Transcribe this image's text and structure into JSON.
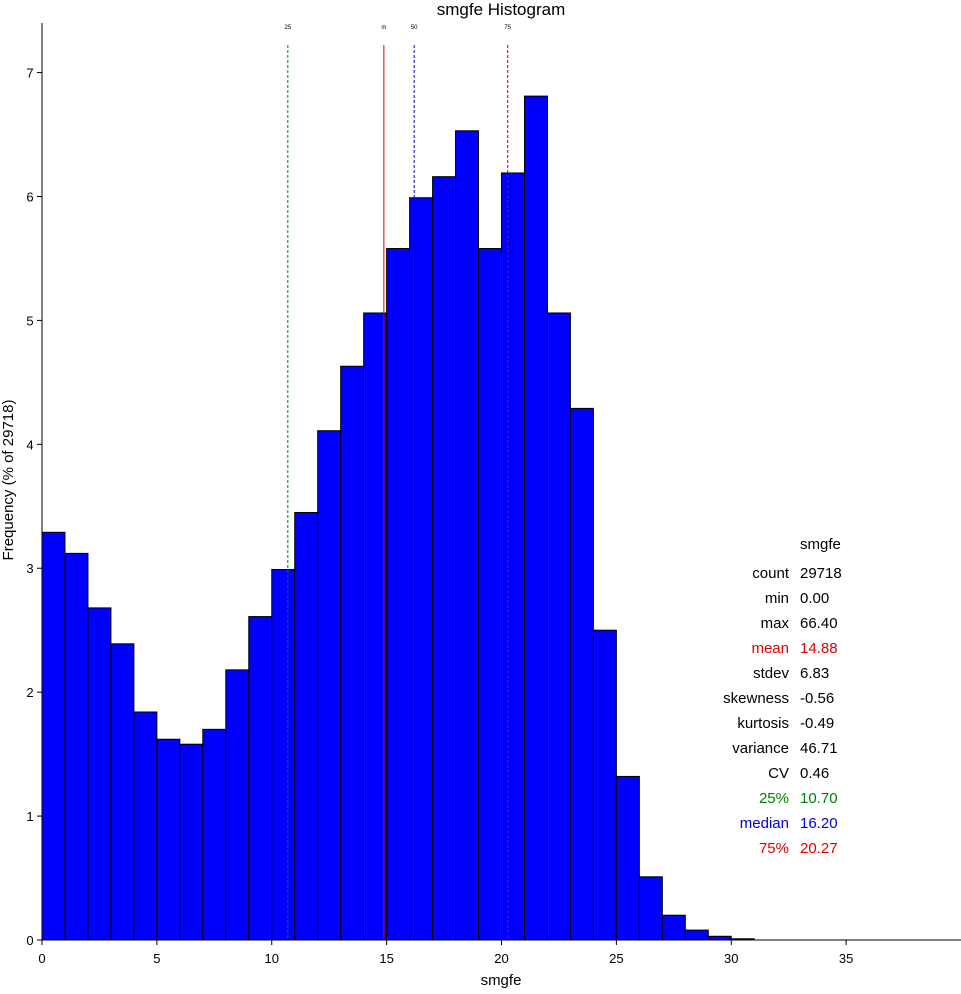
{
  "chart_data": {
    "type": "bar",
    "title": "smgfe Histogram",
    "xlabel": "smgfe",
    "ylabel": "Frequency (% of 29718)",
    "xlim": [
      0,
      40
    ],
    "ylim": [
      0,
      7.4
    ],
    "x_ticks": [
      0,
      5,
      10,
      15,
      20,
      25,
      30,
      35
    ],
    "y_ticks": [
      0,
      1,
      2,
      3,
      4,
      5,
      6,
      7
    ],
    "bin_width": 1,
    "bins": [
      {
        "x0": 0,
        "value": 3.29
      },
      {
        "x0": 1,
        "value": 3.12
      },
      {
        "x0": 2,
        "value": 2.68
      },
      {
        "x0": 3,
        "value": 2.39
      },
      {
        "x0": 4,
        "value": 1.84
      },
      {
        "x0": 5,
        "value": 1.62
      },
      {
        "x0": 6,
        "value": 1.58
      },
      {
        "x0": 7,
        "value": 1.7
      },
      {
        "x0": 8,
        "value": 2.18
      },
      {
        "x0": 9,
        "value": 2.61
      },
      {
        "x0": 10,
        "value": 2.99
      },
      {
        "x0": 11,
        "value": 3.45
      },
      {
        "x0": 12,
        "value": 4.11
      },
      {
        "x0": 13,
        "value": 4.63
      },
      {
        "x0": 14,
        "value": 5.06
      },
      {
        "x0": 15,
        "value": 5.58
      },
      {
        "x0": 16,
        "value": 5.99
      },
      {
        "x0": 17,
        "value": 6.16
      },
      {
        "x0": 18,
        "value": 6.53
      },
      {
        "x0": 19,
        "value": 5.58
      },
      {
        "x0": 20,
        "value": 6.19
      },
      {
        "x0": 21,
        "value": 6.81
      },
      {
        "x0": 22,
        "value": 5.06
      },
      {
        "x0": 23,
        "value": 4.29
      },
      {
        "x0": 24,
        "value": 2.5
      },
      {
        "x0": 25,
        "value": 1.32
      },
      {
        "x0": 26,
        "value": 0.51
      },
      {
        "x0": 27,
        "value": 0.2
      },
      {
        "x0": 28,
        "value": 0.08
      },
      {
        "x0": 29,
        "value": 0.03
      },
      {
        "x0": 30,
        "value": 0.01
      }
    ],
    "bar_color": "#0000ff",
    "bar_edge_color": "#000000",
    "reference_lines": [
      {
        "name": "q25",
        "label": "25",
        "x": 10.7,
        "color": "#008000",
        "style": "dashed"
      },
      {
        "name": "mean",
        "label": "m",
        "x": 14.88,
        "color": "#e00000",
        "style": "solid"
      },
      {
        "name": "median",
        "label": "50",
        "x": 16.2,
        "color": "#0000dd",
        "style": "dashed"
      },
      {
        "name": "q75",
        "label": "75",
        "x": 20.27,
        "color": "#c00000",
        "style": "dashed"
      }
    ],
    "stats": {
      "header": "smgfe",
      "rows": [
        {
          "name": "count",
          "label": "count",
          "value": "29718",
          "color": "#000000"
        },
        {
          "name": "min",
          "label": "min",
          "value": "0.00",
          "color": "#000000"
        },
        {
          "name": "max",
          "label": "max",
          "value": "66.40",
          "color": "#000000"
        },
        {
          "name": "mean",
          "label": "mean",
          "value": "14.88",
          "color": "#e00000"
        },
        {
          "name": "stdev",
          "label": "stdev",
          "value": "6.83",
          "color": "#000000"
        },
        {
          "name": "skewness",
          "label": "skewness",
          "value": "-0.56",
          "color": "#000000"
        },
        {
          "name": "kurtosis",
          "label": "kurtosis",
          "value": "-0.49",
          "color": "#000000"
        },
        {
          "name": "variance",
          "label": "variance",
          "value": "46.71",
          "color": "#000000"
        },
        {
          "name": "cv",
          "label": "CV",
          "value": "0.46",
          "color": "#000000"
        },
        {
          "name": "q25",
          "label": "25%",
          "value": "10.70",
          "color": "#008000"
        },
        {
          "name": "median",
          "label": "median",
          "value": "16.20",
          "color": "#0000dd"
        },
        {
          "name": "q75",
          "label": "75%",
          "value": "20.27",
          "color": "#e00000"
        }
      ]
    }
  }
}
